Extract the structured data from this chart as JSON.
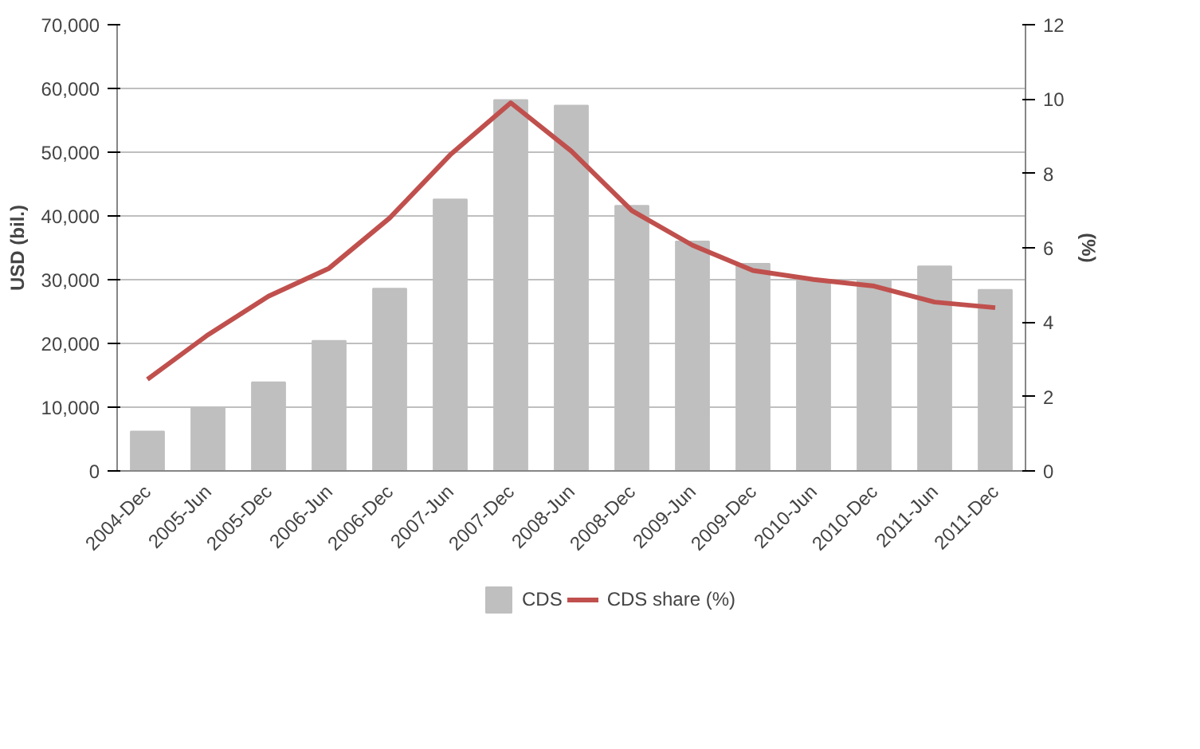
{
  "chart_data": {
    "type": "bar",
    "categories": [
      "2004-Dec",
      "2005-Jun",
      "2005-Dec",
      "2006-Jun",
      "2006-Dec",
      "2007-Jun",
      "2007-Dec",
      "2008-Jun",
      "2008-Dec",
      "2009-Jun",
      "2009-Dec",
      "2010-Jun",
      "2010-Dec",
      "2011-Jun",
      "2011-Dec"
    ],
    "series": [
      {
        "name": "CDS",
        "color": "#bfbfbf",
        "values": [
          6200,
          9900,
          13900,
          20400,
          28600,
          42600,
          58200,
          57300,
          41600,
          36000,
          32500,
          30000,
          29900,
          32100,
          28400
        ]
      },
      {
        "name": "CDS share (%)",
        "type": "line",
        "axis": "y2",
        "color": "#c0504d",
        "values": [
          2.46,
          3.66,
          4.7,
          5.45,
          6.8,
          8.5,
          9.9,
          8.6,
          7.0,
          6.07,
          5.39,
          5.15,
          4.97,
          4.54,
          4.39
        ]
      }
    ],
    "ylabel": "USD (bil.)",
    "y2label": "(%)",
    "ylim": [
      0,
      70000
    ],
    "yticks": [
      {
        "value": 0,
        "label": "0"
      },
      {
        "value": 10000,
        "label": "10,000"
      },
      {
        "value": 20000,
        "label": "20,000"
      },
      {
        "value": 30000,
        "label": "30,000"
      },
      {
        "value": 40000,
        "label": "40,000"
      },
      {
        "value": 50000,
        "label": "50,000"
      },
      {
        "value": 60000,
        "label": "60,000"
      },
      {
        "value": 70000,
        "label": "70,000"
      }
    ],
    "y2lim": [
      0,
      12
    ],
    "y2ticks": [
      0,
      2,
      4,
      6,
      8,
      10,
      12
    ],
    "grid": "y",
    "legend": "bottom",
    "line_style": "solid",
    "marker": "none"
  }
}
